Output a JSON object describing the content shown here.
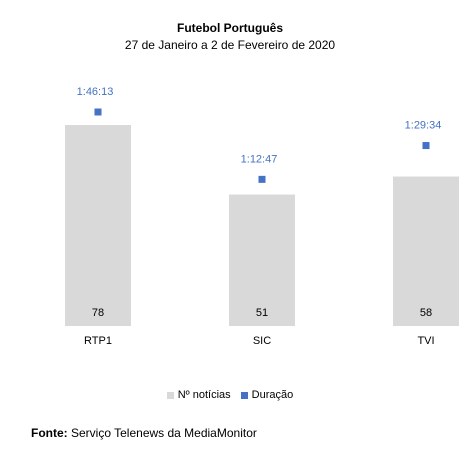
{
  "chart_data": {
    "type": "bar",
    "title": "Futebol Português",
    "subtitle": "27 de Janeiro a 2 de Fevereiro de 2020",
    "categories": [
      "RTP1",
      "SIC",
      "TVI"
    ],
    "series": [
      {
        "name": "Nº notícias",
        "type": "bar",
        "values": [
          78,
          51,
          58
        ],
        "color": "#d9d9d9"
      },
      {
        "name": "Duração",
        "type": "scatter",
        "values": [
          "1:46:13",
          "1:12:47",
          "1:29:34"
        ],
        "values_seconds": [
          6373,
          4367,
          5374
        ],
        "color": "#4472c4"
      }
    ],
    "legend_position": "bottom",
    "grid": false
  },
  "source": {
    "label": "Fonte:",
    "text": "Serviço Telenews da MediaMonitor"
  }
}
